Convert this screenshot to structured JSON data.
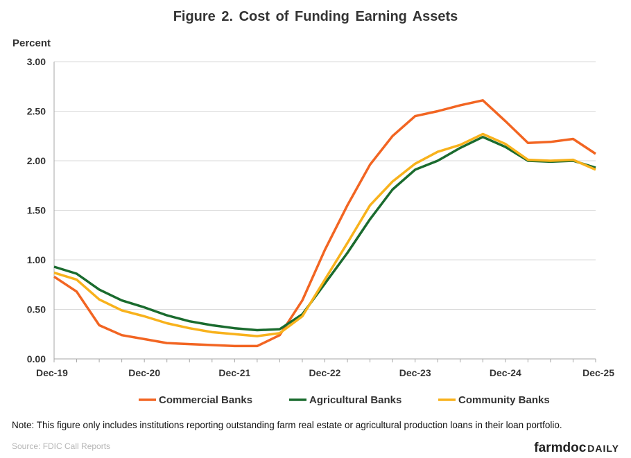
{
  "chart_data": {
    "type": "line",
    "title": "Figure  2. Cost of Funding  Earning  Assets",
    "ylabel": "Percent",
    "xlabel": "",
    "ylim": [
      0,
      3
    ],
    "yticks": [
      0,
      0.5,
      1,
      1.5,
      2,
      2.5,
      3
    ],
    "ytick_labels": [
      "0.00",
      "0.50",
      "1.00",
      "1.50",
      "2.00",
      "2.50",
      "3.00"
    ],
    "x": [
      "Dec-19",
      "Mar-20",
      "Jun-20",
      "Sep-20",
      "Dec-20",
      "Mar-21",
      "Jun-21",
      "Sep-21",
      "Dec-21",
      "Mar-22",
      "Jun-22",
      "Sep-22",
      "Dec-22",
      "Mar-23",
      "Jun-23",
      "Sep-23",
      "Dec-23",
      "Mar-24",
      "Jun-24",
      "Sep-24",
      "Dec-24",
      "Mar-25",
      "Jun-25",
      "Sep-25",
      "Dec-25"
    ],
    "xtick_labels": [
      "Dec-19",
      "Dec-20",
      "Dec-21",
      "Dec-22",
      "Dec-23",
      "Dec-24",
      "Dec-25"
    ],
    "xtick_indices": [
      0,
      4,
      8,
      12,
      16,
      20,
      24
    ],
    "grid": true,
    "legend_position": "bottom",
    "series": [
      {
        "name": "Commercial Banks",
        "color": "#f26522",
        "values": [
          0.83,
          0.68,
          0.34,
          0.24,
          0.2,
          0.16,
          0.15,
          0.14,
          0.13,
          0.13,
          0.24,
          0.59,
          1.1,
          1.55,
          1.96,
          2.25,
          2.45,
          2.5,
          2.56,
          2.61,
          2.4,
          2.18,
          2.19,
          2.22,
          2.07
        ]
      },
      {
        "name": "Agricultural Banks",
        "color": "#1a6b2e",
        "values": [
          0.93,
          0.86,
          0.7,
          0.59,
          0.52,
          0.44,
          0.38,
          0.34,
          0.31,
          0.29,
          0.3,
          0.45,
          0.76,
          1.07,
          1.41,
          1.71,
          1.91,
          2.0,
          2.13,
          2.24,
          2.14,
          2.0,
          1.99,
          2.0,
          1.93
        ]
      },
      {
        "name": "Community Banks",
        "color": "#f8b21c",
        "values": [
          0.87,
          0.8,
          0.6,
          0.49,
          0.43,
          0.36,
          0.31,
          0.27,
          0.25,
          0.23,
          0.26,
          0.43,
          0.8,
          1.17,
          1.55,
          1.79,
          1.97,
          2.09,
          2.16,
          2.27,
          2.17,
          2.01,
          2.0,
          2.01,
          1.91
        ]
      }
    ]
  },
  "note": "Note: This figure only includes institutions reporting outstanding farm real estate or agricultural production loans in their loan portfolio.",
  "source": "Source: FDIC Call Reports",
  "brand": {
    "part1": "farmdoc",
    "part2": "DAILY"
  }
}
